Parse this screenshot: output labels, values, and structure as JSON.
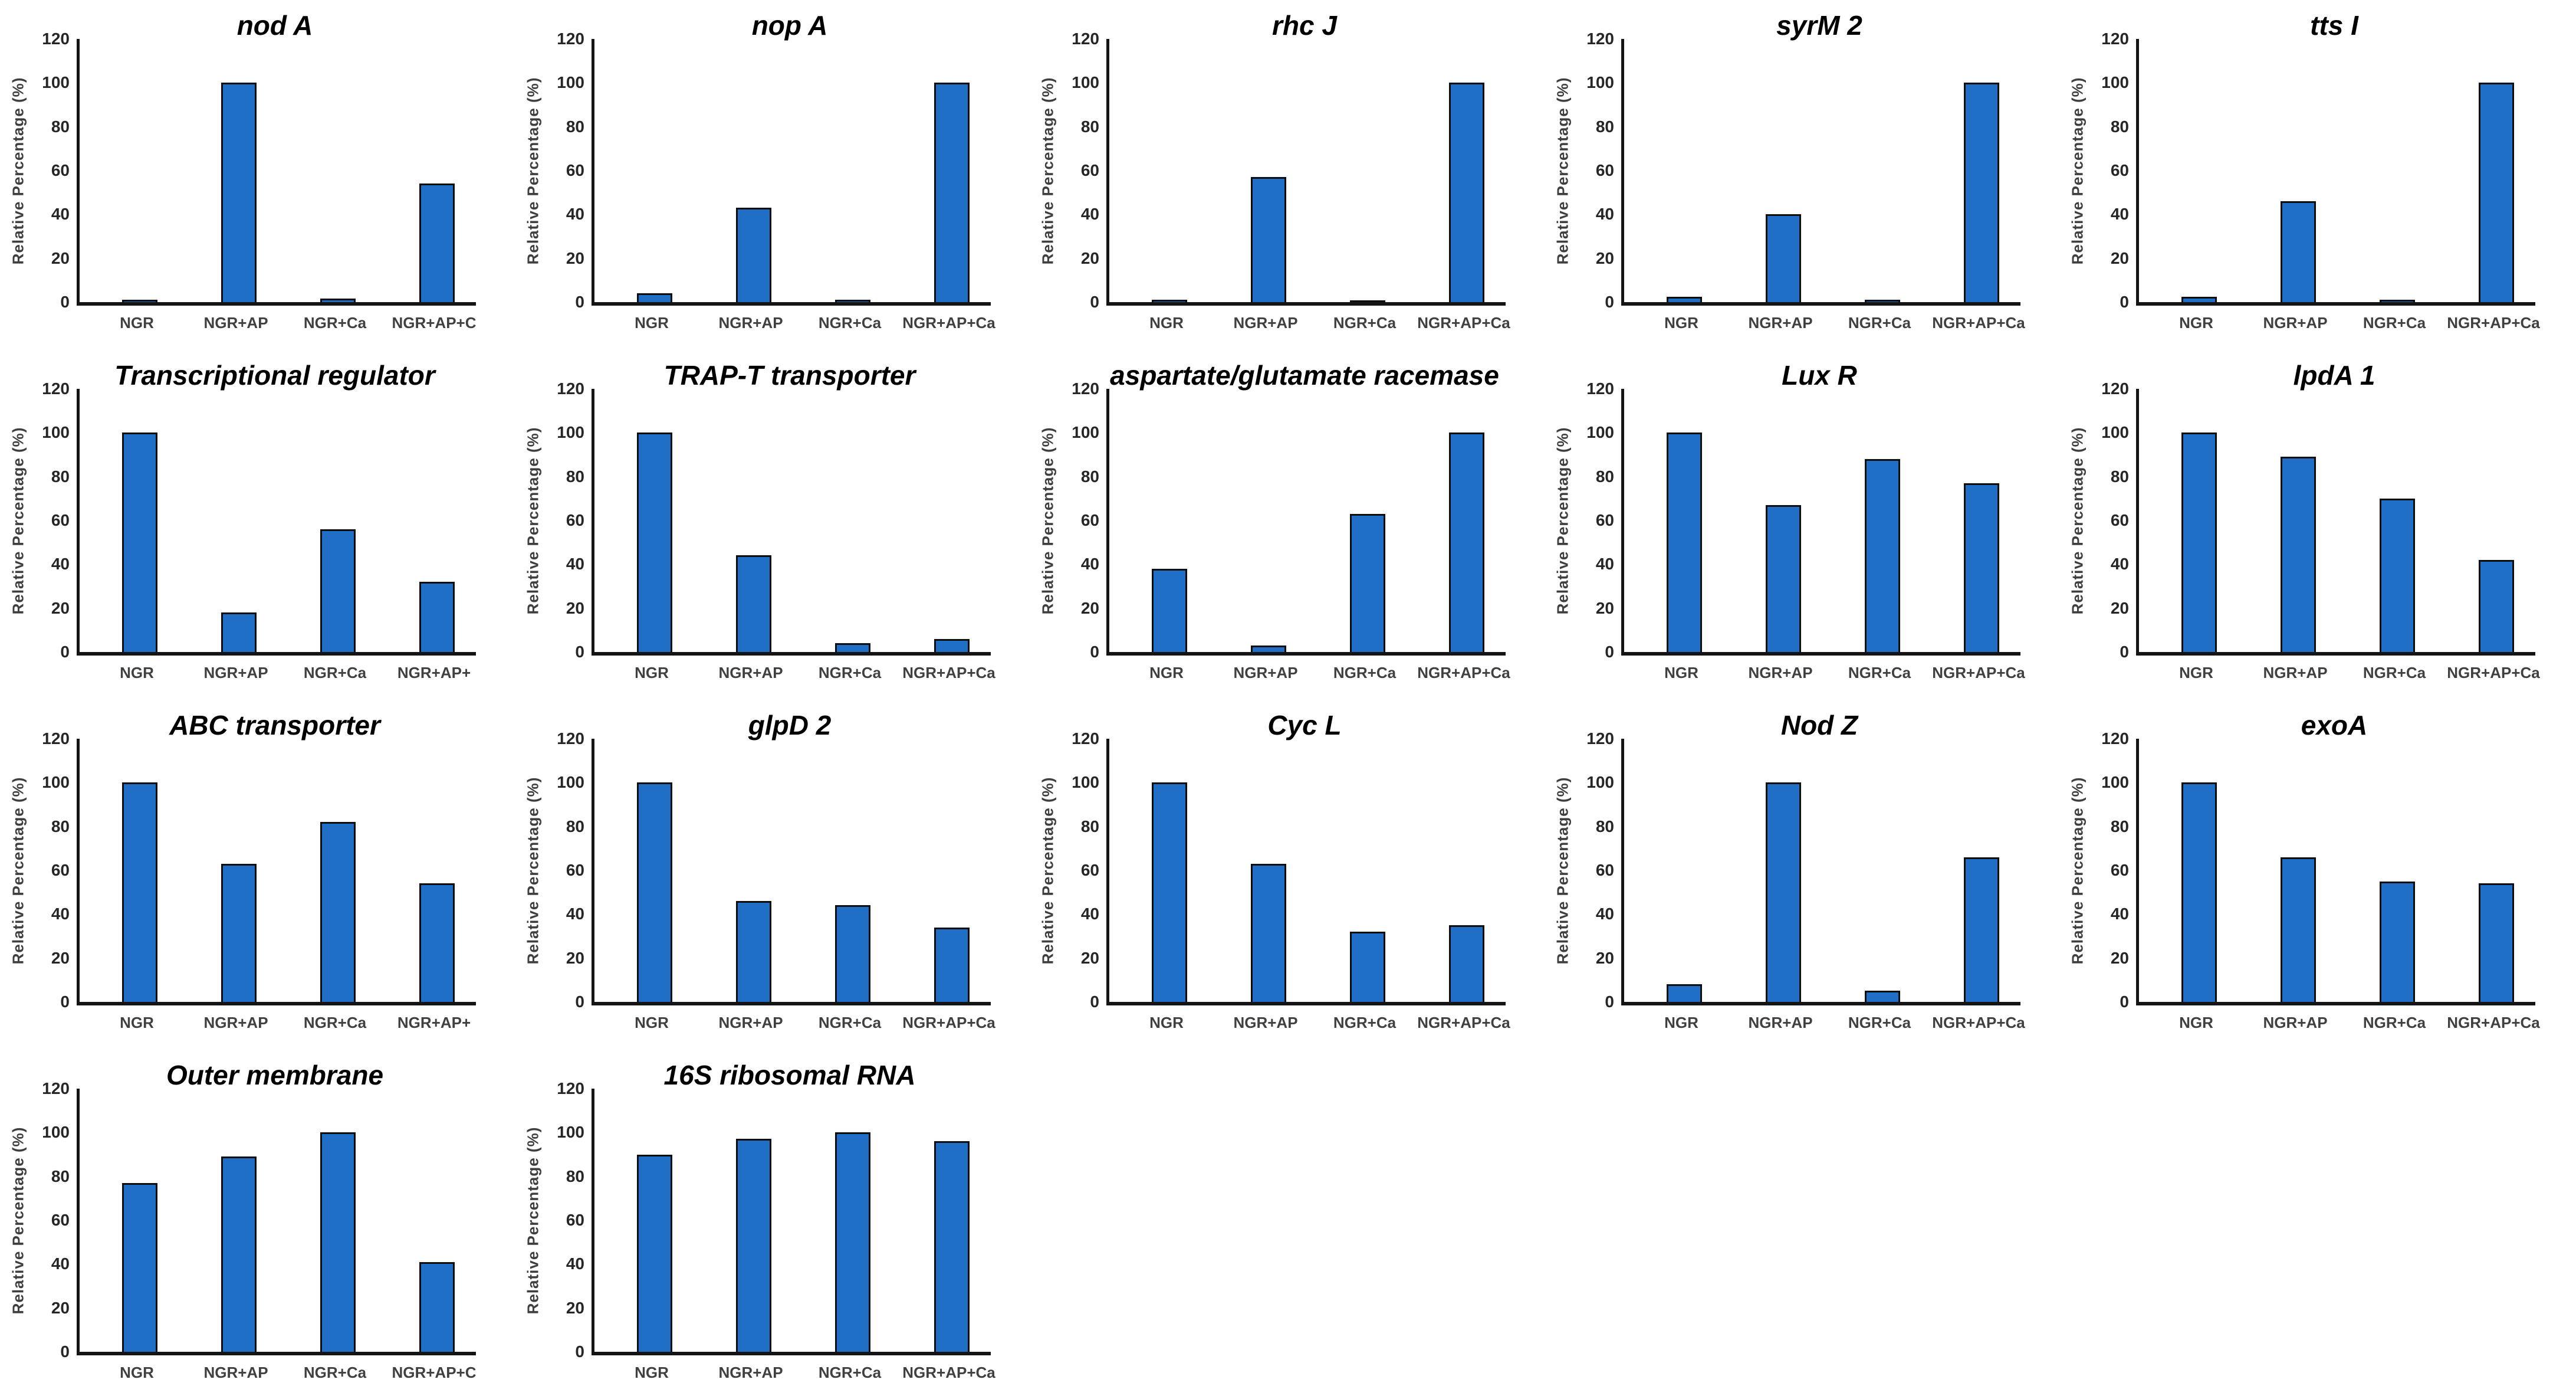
{
  "page": {
    "background": "#ffffff"
  },
  "style": {
    "bar_fill": "#1f6fc6",
    "bar_border": "#0d0d0d",
    "axis_line_color": "#141414",
    "tick_label_color": "#262626",
    "category_label_color": "#404040",
    "title_color": "#000000",
    "ylabel_color": "#3f3f3f"
  },
  "axis": {
    "ylabel": "Relative Percentage (%)",
    "ylim": [
      0,
      120
    ],
    "yticks": [
      0,
      20,
      40,
      60,
      80,
      100,
      120
    ],
    "grid": "off",
    "legend": "none"
  },
  "chart_data": [
    {
      "type": "bar",
      "title": "nod A",
      "categories": [
        "NGR",
        "NGR+AP",
        "NGR+Ca",
        "NGR+AP+C"
      ],
      "values": [
        1,
        100,
        1.5,
        54
      ],
      "xlabel": "",
      "ylabel": "Relative Percentage (%)",
      "ylim": [
        0,
        120
      ]
    },
    {
      "type": "bar",
      "title": "nop A",
      "categories": [
        "NGR",
        "NGR+AP",
        "NGR+Ca",
        "NGR+AP+Ca"
      ],
      "values": [
        4,
        43,
        1,
        100
      ],
      "xlabel": "",
      "ylabel": "Relative Percentage (%)",
      "ylim": [
        0,
        120
      ]
    },
    {
      "type": "bar",
      "title": "rhc J",
      "categories": [
        "NGR",
        "NGR+AP",
        "NGR+Ca",
        "NGR+AP+Ca"
      ],
      "values": [
        1,
        57,
        0.5,
        100
      ],
      "xlabel": "",
      "ylabel": "Relative Percentage (%)",
      "ylim": [
        0,
        120
      ]
    },
    {
      "type": "bar",
      "title": "syrM 2",
      "categories": [
        "NGR",
        "NGR+AP",
        "NGR+Ca",
        "NGR+AP+Ca"
      ],
      "values": [
        2.5,
        40,
        1,
        100
      ],
      "xlabel": "",
      "ylabel": "Relative Percentage (%)",
      "ylim": [
        0,
        120
      ]
    },
    {
      "type": "bar",
      "title": "tts I",
      "categories": [
        "NGR",
        "NGR+AP",
        "NGR+Ca",
        "NGR+AP+Ca"
      ],
      "values": [
        2.5,
        46,
        1,
        100
      ],
      "xlabel": "",
      "ylabel": "Relative Percentage (%)",
      "ylim": [
        0,
        120
      ]
    },
    {
      "type": "bar",
      "title": "Transcriptional regulator",
      "categories": [
        "NGR",
        "NGR+AP",
        "NGR+Ca",
        "NGR+AP+"
      ],
      "values": [
        100,
        18,
        56,
        32
      ],
      "xlabel": "",
      "ylabel": "Relative Percentage (%)",
      "ylim": [
        0,
        120
      ]
    },
    {
      "type": "bar",
      "title": "TRAP-T transporter",
      "categories": [
        "NGR",
        "NGR+AP",
        "NGR+Ca",
        "NGR+AP+Ca"
      ],
      "values": [
        100,
        44,
        4,
        6
      ],
      "xlabel": "",
      "ylabel": "Relative Percentage (%)",
      "ylim": [
        0,
        120
      ]
    },
    {
      "type": "bar",
      "title": "aspartate/glutamate racemase",
      "categories": [
        "NGR",
        "NGR+AP",
        "NGR+Ca",
        "NGR+AP+Ca"
      ],
      "values": [
        38,
        3,
        63,
        100
      ],
      "xlabel": "",
      "ylabel": "Relative Percentage (%)",
      "ylim": [
        0,
        120
      ]
    },
    {
      "type": "bar",
      "title": "Lux R",
      "categories": [
        "NGR",
        "NGR+AP",
        "NGR+Ca",
        "NGR+AP+Ca"
      ],
      "values": [
        100,
        67,
        88,
        77
      ],
      "xlabel": "",
      "ylabel": "Relative Percentage (%)",
      "ylim": [
        0,
        120
      ]
    },
    {
      "type": "bar",
      "title": "lpdA 1",
      "categories": [
        "NGR",
        "NGR+AP",
        "NGR+Ca",
        "NGR+AP+Ca"
      ],
      "values": [
        100,
        89,
        70,
        42
      ],
      "xlabel": "",
      "ylabel": "Relative Percentage (%)",
      "ylim": [
        0,
        120
      ]
    },
    {
      "type": "bar",
      "title": "ABC transporter",
      "categories": [
        "NGR",
        "NGR+AP",
        "NGR+Ca",
        "NGR+AP+"
      ],
      "values": [
        100,
        63,
        82,
        54
      ],
      "xlabel": "",
      "ylabel": "Relative Percentage (%)",
      "ylim": [
        0,
        120
      ]
    },
    {
      "type": "bar",
      "title": "glpD 2",
      "categories": [
        "NGR",
        "NGR+AP",
        "NGR+Ca",
        "NGR+AP+Ca"
      ],
      "values": [
        100,
        46,
        44,
        34
      ],
      "xlabel": "",
      "ylabel": "Relative Percentage (%)",
      "ylim": [
        0,
        120
      ]
    },
    {
      "type": "bar",
      "title": "Cyc L",
      "categories": [
        "NGR",
        "NGR+AP",
        "NGR+Ca",
        "NGR+AP+Ca"
      ],
      "values": [
        100,
        63,
        32,
        35
      ],
      "xlabel": "",
      "ylabel": "Relative Percentage (%)",
      "ylim": [
        0,
        120
      ]
    },
    {
      "type": "bar",
      "title": "Nod Z",
      "categories": [
        "NGR",
        "NGR+AP",
        "NGR+Ca",
        "NGR+AP+Ca"
      ],
      "values": [
        8,
        100,
        5,
        66
      ],
      "xlabel": "",
      "ylabel": "Relative Percentage (%)",
      "ylim": [
        0,
        120
      ]
    },
    {
      "type": "bar",
      "title": "exoA",
      "categories": [
        "NGR",
        "NGR+AP",
        "NGR+Ca",
        "NGR+AP+Ca"
      ],
      "values": [
        100,
        66,
        55,
        54
      ],
      "xlabel": "",
      "ylabel": "Relative Percentage (%)",
      "ylim": [
        0,
        120
      ]
    },
    {
      "type": "bar",
      "title": "Outer membrane",
      "categories": [
        "NGR",
        "NGR+AP",
        "NGR+Ca",
        "NGR+AP+C"
      ],
      "values": [
        77,
        89,
        100,
        41
      ],
      "xlabel": "",
      "ylabel": "Relative Percentage (%)",
      "ylim": [
        0,
        120
      ]
    },
    {
      "type": "bar",
      "title": "16S ribosomal RNA",
      "categories": [
        "NGR",
        "NGR+AP",
        "NGR+Ca",
        "NGR+AP+Ca"
      ],
      "values": [
        90,
        97,
        100,
        96
      ],
      "xlabel": "",
      "ylabel": "Relative Percentage (%)",
      "ylim": [
        0,
        120
      ]
    }
  ]
}
